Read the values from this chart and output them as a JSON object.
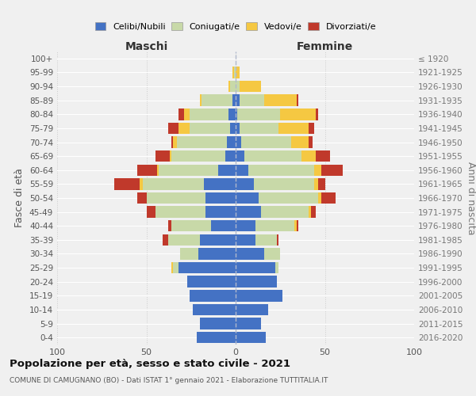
{
  "age_groups": [
    "0-4",
    "5-9",
    "10-14",
    "15-19",
    "20-24",
    "25-29",
    "30-34",
    "35-39",
    "40-44",
    "45-49",
    "50-54",
    "55-59",
    "60-64",
    "65-69",
    "70-74",
    "75-79",
    "80-84",
    "85-89",
    "90-94",
    "95-99",
    "100+"
  ],
  "birth_years": [
    "2016-2020",
    "2011-2015",
    "2006-2010",
    "2001-2005",
    "1996-2000",
    "1991-1995",
    "1986-1990",
    "1981-1985",
    "1976-1980",
    "1971-1975",
    "1966-1970",
    "1961-1965",
    "1956-1960",
    "1951-1955",
    "1946-1950",
    "1941-1945",
    "1936-1940",
    "1931-1935",
    "1926-1930",
    "1921-1925",
    "≤ 1920"
  ],
  "maschi": {
    "celibi": [
      22,
      20,
      24,
      26,
      27,
      32,
      21,
      20,
      14,
      17,
      17,
      18,
      10,
      6,
      5,
      3,
      4,
      2,
      0,
      0,
      0
    ],
    "coniugati": [
      0,
      0,
      0,
      0,
      0,
      3,
      10,
      18,
      22,
      28,
      33,
      34,
      33,
      30,
      28,
      23,
      22,
      17,
      3,
      1,
      0
    ],
    "vedovi": [
      0,
      0,
      0,
      0,
      0,
      1,
      0,
      0,
      0,
      0,
      0,
      2,
      1,
      1,
      2,
      6,
      3,
      1,
      1,
      1,
      0
    ],
    "divorziati": [
      0,
      0,
      0,
      0,
      0,
      0,
      0,
      3,
      2,
      5,
      5,
      14,
      11,
      8,
      1,
      6,
      3,
      0,
      0,
      0,
      0
    ]
  },
  "femmine": {
    "nubili": [
      17,
      14,
      18,
      26,
      23,
      22,
      16,
      11,
      11,
      14,
      13,
      10,
      7,
      5,
      3,
      2,
      1,
      2,
      0,
      0,
      0
    ],
    "coniugate": [
      0,
      0,
      0,
      0,
      0,
      2,
      9,
      12,
      22,
      27,
      33,
      34,
      37,
      32,
      28,
      22,
      24,
      14,
      2,
      0,
      0
    ],
    "vedove": [
      0,
      0,
      0,
      0,
      0,
      0,
      0,
      0,
      1,
      1,
      2,
      2,
      4,
      8,
      10,
      17,
      20,
      18,
      12,
      2,
      0
    ],
    "divorziate": [
      0,
      0,
      0,
      0,
      0,
      0,
      0,
      1,
      1,
      3,
      8,
      4,
      12,
      8,
      2,
      3,
      1,
      1,
      0,
      0,
      0
    ]
  },
  "colors": {
    "celibi": "#4472c4",
    "coniugati": "#c8d9a8",
    "vedovi": "#f5c842",
    "divorziati": "#c0392b"
  },
  "xlim": 100,
  "title": "Popolazione per età, sesso e stato civile - 2021",
  "subtitle": "COMUNE DI CAMUGNANO (BO) - Dati ISTAT 1° gennaio 2021 - Elaborazione TUTTITALIA.IT",
  "ylabel": "Fasce di età",
  "ylabel_right": "Anni di nascita",
  "xlabel_maschi": "Maschi",
  "xlabel_femmine": "Femmine",
  "legend_labels": [
    "Celibi/Nubili",
    "Coniugati/e",
    "Vedovi/e",
    "Divorziati/e"
  ],
  "bg_color": "#f0f0f0"
}
